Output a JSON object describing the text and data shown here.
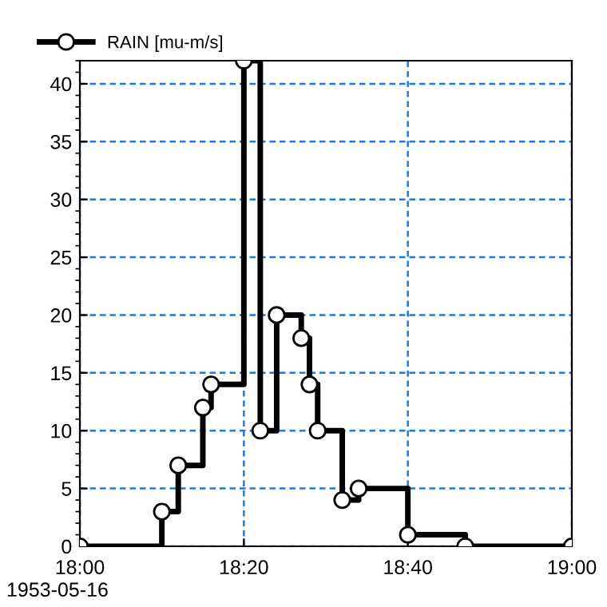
{
  "chart_data": {
    "type": "step",
    "series": [
      {
        "name": "RAIN [mu-m/s]",
        "color": "#000000",
        "x": [
          "1953-05-16T18:00",
          "1953-05-16T18:10",
          "1953-05-16T18:12",
          "1953-05-16T18:15",
          "1953-05-16T18:16",
          "1953-05-16T18:20",
          "1953-05-16T18:22",
          "1953-05-16T18:24",
          "1953-05-16T18:27",
          "1953-05-16T18:28",
          "1953-05-16T18:29",
          "1953-05-16T18:32",
          "1953-05-16T18:34",
          "1953-05-16T18:40",
          "1953-05-16T18:47",
          "1953-05-16T19:00"
        ],
        "values": [
          0,
          3,
          7,
          12,
          14,
          42,
          10,
          20,
          18,
          14,
          10,
          4,
          5,
          1,
          0,
          0
        ]
      }
    ],
    "xlim": [
      "1953-05-16T18:00",
      "1953-05-16T19:00"
    ],
    "xticks": [
      {
        "value": "1953-05-16T18:00",
        "label": "18:00"
      },
      {
        "value": "1953-05-16T18:20",
        "label": "18:20"
      },
      {
        "value": "1953-05-16T18:40",
        "label": "18:40"
      },
      {
        "value": "1953-05-16T19:00",
        "label": "19:00"
      }
    ],
    "ylim": [
      0,
      42
    ],
    "yticks": [
      0,
      5,
      10,
      15,
      20,
      25,
      30,
      35,
      40
    ],
    "annotations": [
      "1953-05-16"
    ],
    "grid": true,
    "legend": "top left",
    "marker": "circle",
    "line_style": "solid"
  }
}
